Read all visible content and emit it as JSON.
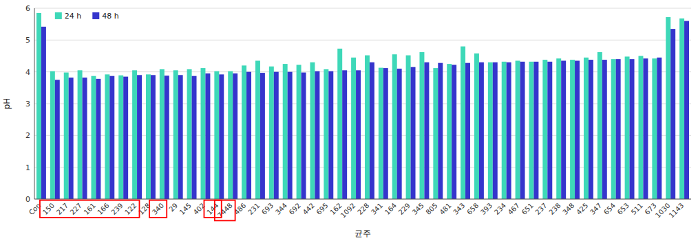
{
  "chart_data": {
    "type": "bar",
    "categories": [
      "Con",
      "150",
      "217",
      "227",
      "161",
      "166",
      "239",
      "122",
      "128",
      "340",
      "29",
      "145",
      "402",
      "144",
      "7448",
      "486",
      "231",
      "693",
      "344",
      "692",
      "442",
      "695",
      "162",
      "1092",
      "228",
      "341",
      "164",
      "229",
      "345",
      "805",
      "481",
      "343",
      "658",
      "393",
      "234",
      "467",
      "651",
      "237",
      "238",
      "348",
      "425",
      "347",
      "654",
      "653",
      "511",
      "673",
      "1030",
      "1143"
    ],
    "series": [
      {
        "name": "24 h",
        "color": "#3ED8B8",
        "values": [
          5.85,
          4.02,
          3.98,
          4.05,
          3.87,
          3.92,
          3.89,
          4.05,
          3.92,
          4.08,
          4.05,
          4.08,
          4.12,
          4.02,
          4.02,
          4.2,
          4.35,
          4.17,
          4.25,
          4.22,
          4.3,
          4.08,
          4.73,
          4.45,
          4.52,
          4.13,
          4.55,
          4.52,
          4.62,
          4.12,
          4.25,
          4.8,
          4.58,
          4.3,
          4.32,
          4.35,
          4.32,
          4.38,
          4.42,
          4.38,
          4.45,
          4.62,
          4.4,
          4.48,
          4.5,
          4.42,
          5.72,
          5.68
        ]
      },
      {
        "name": "48 h",
        "color": "#3535CC",
        "values": [
          5.42,
          3.75,
          3.82,
          3.82,
          3.78,
          3.87,
          3.85,
          3.9,
          3.9,
          3.88,
          3.9,
          3.87,
          3.95,
          3.92,
          3.95,
          4.0,
          3.97,
          4.0,
          4.0,
          3.98,
          4.02,
          4.02,
          4.05,
          4.05,
          4.3,
          4.12,
          4.1,
          4.15,
          4.3,
          4.28,
          4.22,
          4.28,
          4.3,
          4.3,
          4.3,
          4.32,
          4.32,
          4.32,
          4.35,
          4.35,
          4.38,
          4.38,
          4.4,
          4.4,
          4.42,
          4.45,
          5.35,
          5.6
        ]
      }
    ],
    "xlabel": "균주",
    "ylabel": "pH",
    "ylim": [
      0,
      6
    ],
    "yticks": [
      0,
      1,
      2,
      3,
      4,
      5,
      6
    ],
    "grid": true,
    "legend": "upper left",
    "highlight_groups": [
      [
        "150",
        "217",
        "227",
        "161",
        "166",
        "239",
        "122"
      ],
      [
        "340"
      ],
      [
        "144"
      ],
      [
        "7448"
      ]
    ]
  }
}
